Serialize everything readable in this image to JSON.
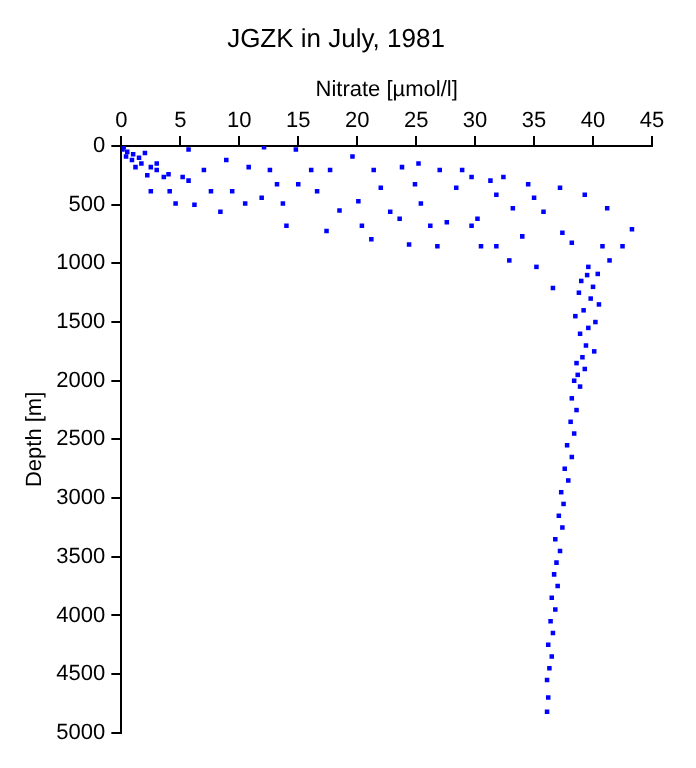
{
  "chart_data": {
    "type": "scatter",
    "title": "JGZK in July, 1981",
    "xlabel": "Nitrate [µmol/l]",
    "ylabel": "Depth [m]",
    "xlim": [
      0,
      45
    ],
    "xticks": [
      0,
      5,
      10,
      15,
      20,
      25,
      30,
      35,
      40,
      45
    ],
    "ylim": [
      5000,
      0
    ],
    "yticks": [
      0,
      500,
      1000,
      1500,
      2000,
      2500,
      3000,
      3500,
      4000,
      4500,
      5000
    ],
    "grid": false,
    "legend": false,
    "marker": "square",
    "series": [
      {
        "color": "#0000ff",
        "x": [
          0.1,
          0.4,
          0.9,
          1.7,
          2.5,
          3,
          3.6,
          2.5,
          4.1,
          4.6,
          5.2,
          5.7,
          5.7,
          6.2,
          7,
          7.6,
          8.4,
          8.9,
          9.4,
          10.5,
          10.8,
          11.9,
          12.1,
          12.6,
          13.2,
          13.7,
          14,
          14.8,
          15,
          16.1,
          16.6,
          17.4,
          17.7,
          18.5,
          19.6,
          20.1,
          20.4,
          21.2,
          21.4,
          22,
          22.8,
          23.6,
          23.8,
          24.4,
          24.9,
          25.2,
          25.4,
          26.2,
          26.8,
          27,
          27.6,
          28.4,
          28.9,
          29.7,
          30.2,
          30.5,
          31.3,
          31.8,
          32.4,
          32.9,
          33.2,
          34.5,
          35,
          35.2,
          35.8,
          36.6,
          37.2,
          37.4,
          38.2,
          39.3,
          39.6,
          40.4,
          40.8,
          41.2,
          41.4,
          42.5,
          43.3,
          34,
          31.8,
          29.7,
          0.2,
          0.5,
          1,
          1.5,
          2,
          3,
          4,
          2.2,
          1.2,
          39.5,
          39,
          40,
          38.8,
          39.8,
          40.5,
          39.2,
          38.5,
          40.2,
          39.6,
          38.9,
          39.4,
          40.1,
          39.1,
          38.6,
          39.3,
          38.7,
          38.4,
          38.9,
          38.2,
          38.6,
          38.1,
          38.4,
          37.8,
          38.2,
          37.6,
          37.9,
          37.3,
          37.5,
          37.1,
          37.4,
          36.8,
          37.2,
          36.9,
          36.7,
          37,
          36.5,
          36.8,
          36.4,
          36.6,
          36.2,
          36.5,
          36.3,
          36.1,
          36.2,
          36.1
        ],
        "values": [
          30,
          90,
          120,
          150,
          180,
          205,
          265,
          385,
          385,
          490,
          265,
          30,
          295,
          500,
          205,
          385,
          560,
          120,
          385,
          490,
          180,
          440,
          10,
          205,
          325,
          490,
          680,
          30,
          325,
          205,
          385,
          725,
          205,
          550,
          90,
          470,
          680,
          795,
          205,
          355,
          560,
          620,
          180,
          840,
          325,
          150,
          490,
          680,
          855,
          205,
          650,
          355,
          205,
          265,
          620,
          855,
          295,
          415,
          265,
          975,
          530,
          325,
          440,
          1030,
          560,
          1210,
          355,
          740,
          825,
          415,
          1030,
          1090,
          855,
          530,
          975,
          855,
          710,
          770,
          855,
          680,
          10,
          50,
          70,
          100,
          60,
          150,
          240,
          250,
          180,
          1100,
          1150,
          1200,
          1250,
          1300,
          1350,
          1400,
          1450,
          1500,
          1550,
          1600,
          1700,
          1750,
          1800,
          1850,
          1900,
          1950,
          2000,
          2050,
          2150,
          2250,
          2350,
          2450,
          2550,
          2650,
          2750,
          2850,
          2950,
          3050,
          3150,
          3250,
          3350,
          3450,
          3550,
          3650,
          3750,
          3850,
          3950,
          4050,
          4150,
          4250,
          4350,
          4450,
          4550,
          4700,
          4820
        ]
      }
    ]
  }
}
